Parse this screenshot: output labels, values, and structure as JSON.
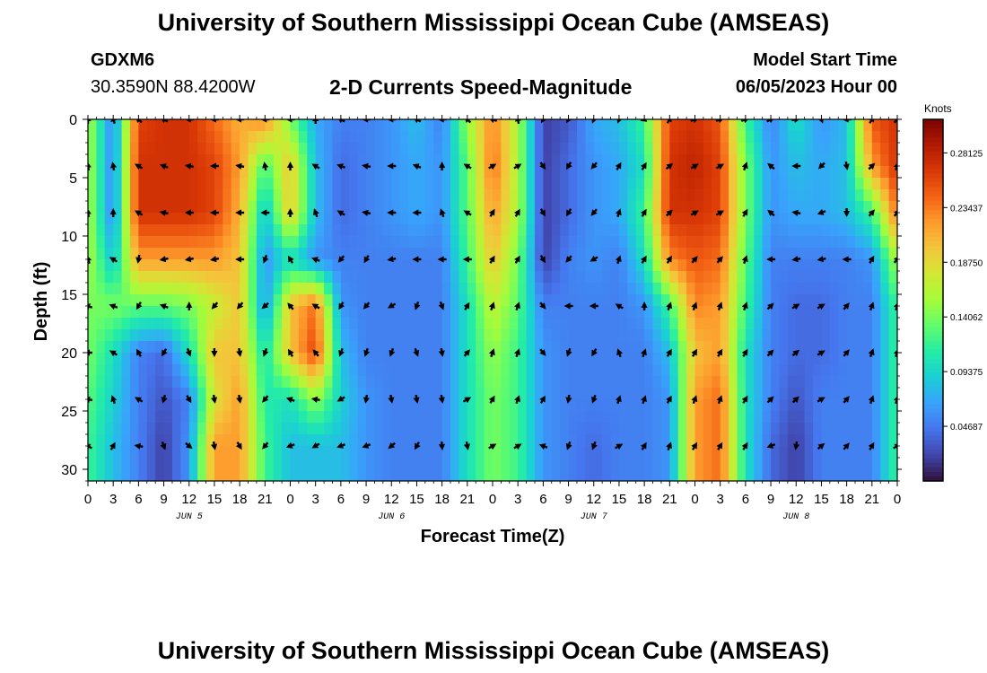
{
  "header": {
    "title": "University of Southern Mississippi Ocean Cube (AMSEAS)",
    "station": "GDXM6",
    "coords": "30.3590N  88.4200W",
    "product": "2-D Currents Speed-Magnitude",
    "start_label": "Model Start Time",
    "start_value": "06/05/2023 Hour 00"
  },
  "footer": {
    "title": "University of Southern Mississippi Ocean Cube (AMSEAS)"
  },
  "colors": {
    "colormap": [
      "#30123b",
      "#4145ab",
      "#4675ed",
      "#39a2fc",
      "#1bcfd4",
      "#24eca6",
      "#61fc6c",
      "#a4fc3b",
      "#d1e834",
      "#f3c63a",
      "#fe9b2d",
      "#f36315",
      "#d93806",
      "#b11901",
      "#7a0402"
    ],
    "arrow": "#000000"
  },
  "chart_data": {
    "type": "heatmap",
    "xlabel": "Forecast Time(Z)",
    "ylabel": "Depth (ft)",
    "x_hours": [
      0,
      3,
      6,
      9,
      12,
      15,
      18,
      21,
      24,
      27,
      30,
      33,
      36,
      39,
      42,
      45,
      48,
      51,
      54,
      57,
      60,
      63,
      66,
      69,
      72,
      75,
      78,
      81,
      84,
      87,
      90,
      93,
      96
    ],
    "xtick_labels": [
      "0",
      "3",
      "6",
      "9",
      "12",
      "15",
      "18",
      "21",
      "0",
      "3",
      "6",
      "9",
      "12",
      "15",
      "18",
      "21",
      "0",
      "3",
      "6",
      "9",
      "12",
      "15",
      "18",
      "21",
      "0",
      "3",
      "6",
      "9",
      "12",
      "15",
      "18",
      "21",
      "0"
    ],
    "date_labels": [
      {
        "label": "JUN 5",
        "hour": 12
      },
      {
        "label": "JUN 6",
        "hour": 36
      },
      {
        "label": "JUN 7",
        "hour": 60
      },
      {
        "label": "JUN 8",
        "hour": 84
      }
    ],
    "xlim": [
      0,
      96
    ],
    "depths": [
      0,
      4,
      8,
      12,
      16,
      20,
      24,
      28
    ],
    "ytick_values": [
      0,
      5,
      10,
      15,
      20,
      25,
      30
    ],
    "ytick_labels": [
      "0",
      "5",
      "10",
      "15",
      "20",
      "25",
      "30"
    ],
    "ylim": [
      0,
      31
    ],
    "colorbar": {
      "title": "Knots",
      "min": 0.0,
      "max": 0.31,
      "ticks": [
        0.04687,
        0.09375,
        0.14062,
        0.1875,
        0.23437,
        0.28125
      ],
      "tick_labels": [
        "0.04687",
        "0.09375",
        "0.14062",
        "0.18750",
        "0.23437",
        "0.28125"
      ]
    },
    "speed_knots": [
      [
        0.16,
        0.05,
        0.26,
        0.27,
        0.27,
        0.24,
        0.21,
        0.23,
        0.14,
        0.07,
        0.05,
        0.05,
        0.06,
        0.08,
        0.05,
        0.15,
        0.23,
        0.16,
        0.02,
        0.03,
        0.07,
        0.08,
        0.12,
        0.26,
        0.27,
        0.25,
        0.12,
        0.05,
        0.1,
        0.06,
        0.08,
        0.25,
        0.27
      ],
      [
        0.16,
        0.05,
        0.27,
        0.27,
        0.27,
        0.26,
        0.22,
        0.12,
        0.2,
        0.08,
        0.04,
        0.05,
        0.06,
        0.07,
        0.06,
        0.13,
        0.24,
        0.16,
        0.02,
        0.04,
        0.06,
        0.07,
        0.1,
        0.27,
        0.28,
        0.26,
        0.14,
        0.06,
        0.08,
        0.07,
        0.08,
        0.22,
        0.27
      ],
      [
        0.16,
        0.05,
        0.27,
        0.27,
        0.27,
        0.26,
        0.21,
        0.08,
        0.2,
        0.08,
        0.04,
        0.05,
        0.06,
        0.07,
        0.06,
        0.13,
        0.22,
        0.16,
        0.02,
        0.04,
        0.06,
        0.07,
        0.12,
        0.27,
        0.27,
        0.26,
        0.14,
        0.06,
        0.07,
        0.07,
        0.08,
        0.12,
        0.24
      ],
      [
        0.16,
        0.08,
        0.22,
        0.22,
        0.22,
        0.22,
        0.2,
        0.06,
        0.1,
        0.06,
        0.05,
        0.05,
        0.05,
        0.05,
        0.05,
        0.12,
        0.2,
        0.14,
        0.02,
        0.05,
        0.06,
        0.05,
        0.1,
        0.23,
        0.25,
        0.24,
        0.13,
        0.05,
        0.05,
        0.05,
        0.05,
        0.06,
        0.16
      ],
      [
        0.14,
        0.14,
        0.13,
        0.13,
        0.14,
        0.17,
        0.2,
        0.06,
        0.2,
        0.24,
        0.06,
        0.05,
        0.05,
        0.05,
        0.05,
        0.1,
        0.17,
        0.13,
        0.05,
        0.05,
        0.05,
        0.05,
        0.06,
        0.12,
        0.23,
        0.22,
        0.12,
        0.05,
        0.04,
        0.04,
        0.05,
        0.05,
        0.12
      ],
      [
        0.14,
        0.1,
        0.05,
        0.04,
        0.1,
        0.2,
        0.2,
        0.1,
        0.2,
        0.26,
        0.08,
        0.05,
        0.05,
        0.05,
        0.05,
        0.1,
        0.15,
        0.12,
        0.06,
        0.05,
        0.05,
        0.05,
        0.05,
        0.08,
        0.2,
        0.22,
        0.1,
        0.05,
        0.04,
        0.04,
        0.05,
        0.05,
        0.12
      ],
      [
        0.13,
        0.09,
        0.05,
        0.03,
        0.05,
        0.18,
        0.22,
        0.11,
        0.1,
        0.15,
        0.09,
        0.06,
        0.05,
        0.05,
        0.05,
        0.1,
        0.14,
        0.12,
        0.06,
        0.05,
        0.05,
        0.05,
        0.05,
        0.06,
        0.22,
        0.24,
        0.1,
        0.05,
        0.03,
        0.05,
        0.05,
        0.05,
        0.12
      ],
      [
        0.12,
        0.08,
        0.05,
        0.02,
        0.06,
        0.22,
        0.22,
        0.12,
        0.08,
        0.08,
        0.08,
        0.06,
        0.05,
        0.05,
        0.05,
        0.1,
        0.14,
        0.12,
        0.06,
        0.05,
        0.04,
        0.05,
        0.05,
        0.06,
        0.22,
        0.24,
        0.1,
        0.04,
        0.02,
        0.05,
        0.05,
        0.05,
        0.12
      ]
    ],
    "vector_direction_deg": [
      [
        0,
        340,
        315,
        300,
        270,
        270,
        270,
        270,
        270,
        0,
        300,
        270,
        270,
        300,
        270,
        315,
        290,
        350,
        210,
        210,
        200,
        200,
        250,
        30,
        70,
        70,
        70,
        60,
        80,
        160,
        270,
        30,
        40
      ],
      [
        350,
        350,
        300,
        290,
        280,
        270,
        280,
        350,
        0,
        300,
        290,
        280,
        270,
        290,
        0,
        300,
        60,
        60,
        145,
        210,
        220,
        30,
        30,
        50,
        60,
        60,
        20,
        310,
        270,
        225,
        170,
        45,
        20
      ],
      [
        350,
        0,
        300,
        280,
        270,
        270,
        270,
        270,
        0,
        340,
        300,
        280,
        270,
        270,
        340,
        300,
        30,
        30,
        150,
        210,
        220,
        20,
        30,
        45,
        60,
        60,
        30,
        310,
        280,
        250,
        180,
        40,
        40
      ],
      [
        340,
        300,
        190,
        260,
        260,
        260,
        270,
        200,
        330,
        290,
        220,
        210,
        260,
        270,
        270,
        270,
        30,
        30,
        150,
        220,
        240,
        20,
        30,
        30,
        40,
        40,
        20,
        270,
        260,
        260,
        270,
        30,
        40
      ],
      [
        290,
        290,
        210,
        290,
        0,
        220,
        220,
        230,
        320,
        300,
        210,
        220,
        240,
        200,
        160,
        30,
        20,
        20,
        140,
        270,
        270,
        300,
        0,
        20,
        20,
        20,
        20,
        45,
        60,
        60,
        40,
        20,
        20
      ],
      [
        270,
        300,
        330,
        210,
        160,
        180,
        170,
        200,
        330,
        320,
        200,
        200,
        200,
        160,
        170,
        40,
        20,
        20,
        140,
        200,
        210,
        340,
        20,
        30,
        30,
        30,
        30,
        45,
        50,
        60,
        40,
        20,
        20
      ],
      [
        280,
        340,
        300,
        195,
        150,
        170,
        170,
        220,
        290,
        280,
        240,
        190,
        170,
        170,
        170,
        60,
        30,
        20,
        30,
        190,
        200,
        20,
        20,
        30,
        20,
        20,
        30,
        45,
        45,
        60,
        40,
        20,
        20
      ],
      [
        300,
        30,
        280,
        160,
        130,
        170,
        150,
        220,
        250,
        240,
        250,
        250,
        230,
        210,
        175,
        170,
        60,
        60,
        290,
        200,
        200,
        60,
        30,
        20,
        30,
        30,
        30,
        250,
        190,
        50,
        40,
        30,
        60
      ]
    ]
  }
}
